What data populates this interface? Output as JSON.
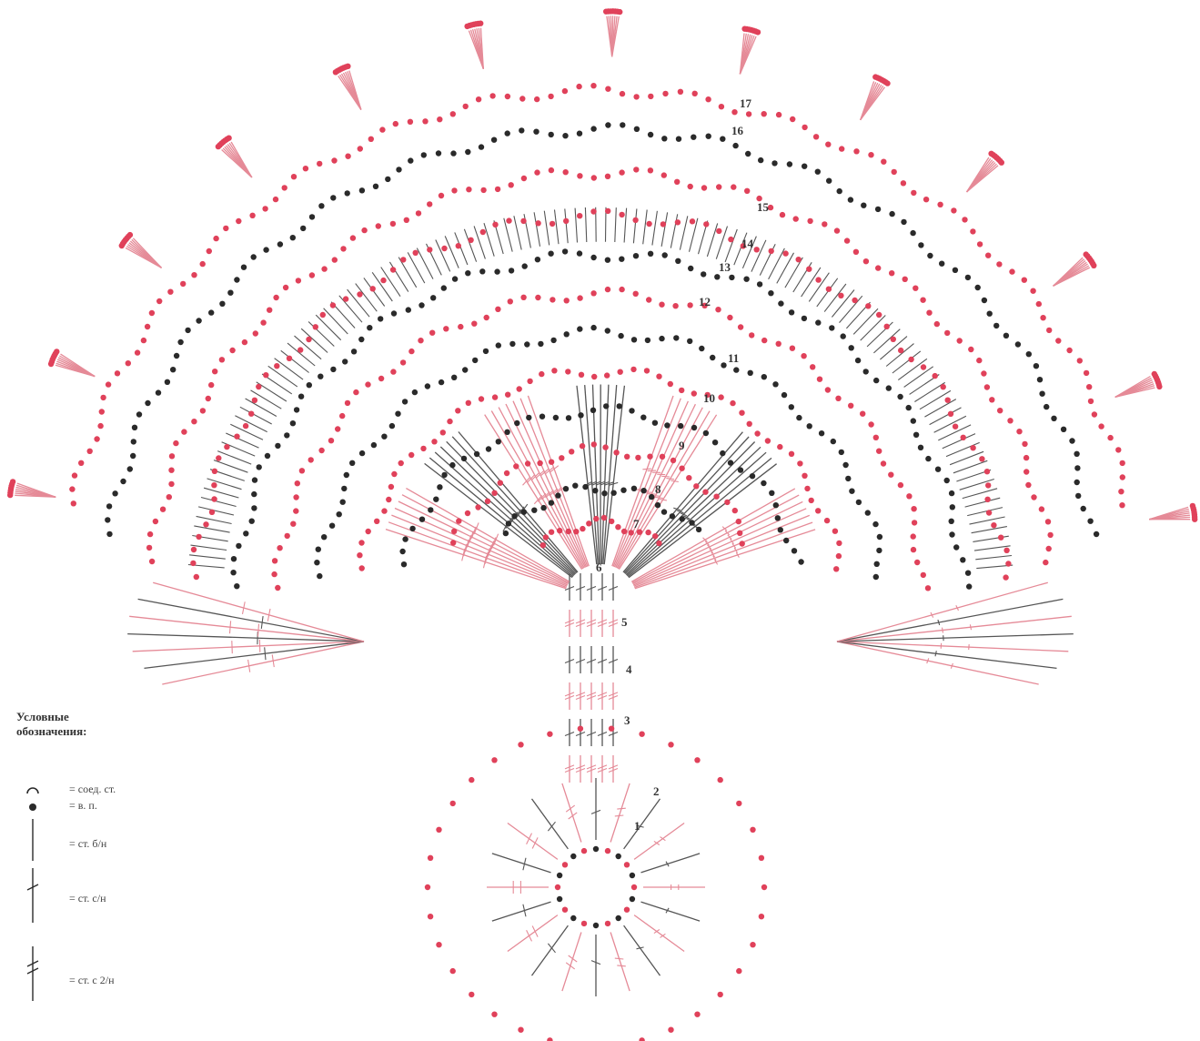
{
  "colors": {
    "red": "#e0415a",
    "black": "#2a2a2a",
    "red_line": "#e58a97",
    "black_line": "#555555"
  },
  "row_numbers": [
    "1",
    "2",
    "3",
    "4",
    "5",
    "6",
    "7",
    "8",
    "9",
    "10",
    "11",
    "12",
    "13",
    "14",
    "15",
    "16",
    "17"
  ],
  "legend": {
    "title_line1": "Условные",
    "title_line2": "обозначения:",
    "items": [
      {
        "icon": "slip-stitch-icon",
        "label": "= соед. ст."
      },
      {
        "icon": "chain-stitch-icon",
        "label": "= в. п."
      },
      {
        "icon": "single-crochet-icon",
        "label": "= ст. б/н"
      },
      {
        "icon": "double-crochet-icon",
        "label": "= ст. с/н"
      },
      {
        "icon": "treble-crochet-icon",
        "label": "= ст. с 2/н"
      }
    ]
  }
}
